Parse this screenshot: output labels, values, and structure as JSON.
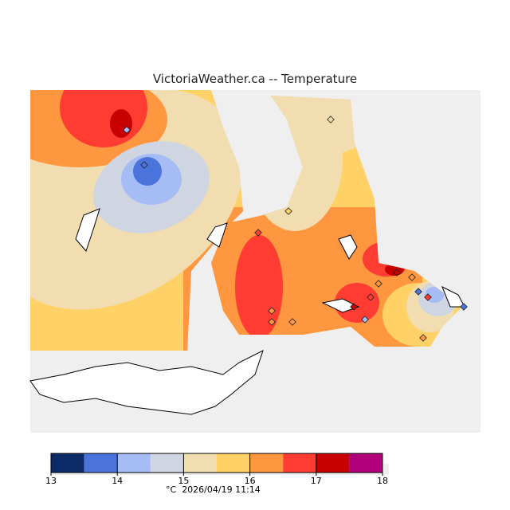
{
  "title": "VictoriaWeather.ca -- Temperature",
  "legend": {
    "ticks": [
      "13",
      "14",
      "15",
      "16",
      "17",
      "18"
    ],
    "unit": "°C",
    "timestamp": "2026/04/19 11:14",
    "bands": [
      {
        "from": 13,
        "to": 13.5,
        "color": "#0c2a66"
      },
      {
        "from": 13.5,
        "to": 14,
        "color": "#4a74dc"
      },
      {
        "from": 14,
        "to": 14.5,
        "color": "#a6bcf4"
      },
      {
        "from": 14.5,
        "to": 15,
        "color": "#d0d5e2"
      },
      {
        "from": 15,
        "to": 15.5,
        "color": "#f2ddb0"
      },
      {
        "from": 15.5,
        "to": 16,
        "color": "#ffd166"
      },
      {
        "from": 16,
        "to": 16.5,
        "color": "#ff9640"
      },
      {
        "from": 16.5,
        "to": 17,
        "color": "#ff3c32"
      },
      {
        "from": 17,
        "to": 17.5,
        "color": "#c80000"
      },
      {
        "from": 17.5,
        "to": 18,
        "color": "#b0007a"
      }
    ]
  }
}
